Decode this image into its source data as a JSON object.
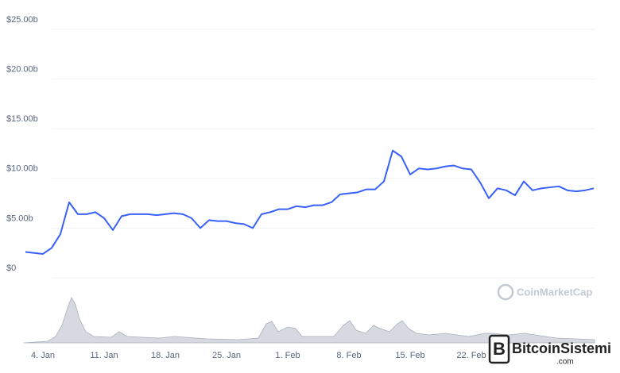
{
  "chart_data": {
    "type": "line",
    "x": [
      "2. Jan",
      "3. Jan",
      "4. Jan",
      "5. Jan",
      "6. Jan",
      "7. Jan",
      "8. Jan",
      "9. Jan",
      "10. Jan",
      "11. Jan",
      "12. Jan",
      "13. Jan",
      "14. Jan",
      "15. Jan",
      "16. Jan",
      "17. Jan",
      "18. Jan",
      "19. Jan",
      "20. Jan",
      "21. Jan",
      "22. Jan",
      "23. Jan",
      "24. Jan",
      "25. Jan",
      "26. Jan",
      "27. Jan",
      "28. Jan",
      "29. Jan",
      "30. Jan",
      "31. Jan",
      "1. Feb",
      "2. Feb",
      "3. Feb",
      "4. Feb",
      "5. Feb",
      "6. Feb",
      "7. Feb",
      "8. Feb",
      "9. Feb",
      "10. Feb",
      "11. Feb",
      "12. Feb",
      "13. Feb",
      "14. Feb",
      "15. Feb",
      "16. Feb",
      "17. Feb",
      "18. Feb",
      "19. Feb",
      "20. Feb",
      "21. Feb",
      "22. Feb",
      "23. Feb",
      "24. Feb",
      "25. Feb",
      "26. Feb",
      "27. Feb",
      "28. Feb",
      "1. Mar",
      "2. Mar",
      "3. Mar",
      "4. Mar",
      "5. Mar",
      "6. Mar",
      "7. Mar",
      "8. Mar"
    ],
    "series": [
      {
        "color": "#3861fb",
        "values": [
          2.6,
          2.5,
          2.4,
          3.0,
          4.4,
          7.6,
          6.4,
          6.4,
          6.6,
          6.0,
          4.8,
          6.2,
          6.4,
          6.4,
          6.4,
          6.3,
          6.4,
          6.5,
          6.4,
          6.0,
          5.0,
          5.8,
          5.7,
          5.7,
          5.5,
          5.4,
          5.0,
          6.4,
          6.6,
          6.9,
          6.9,
          7.2,
          7.1,
          7.3,
          7.3,
          7.6,
          8.4,
          8.5,
          8.6,
          8.9,
          8.9,
          9.7,
          12.8,
          12.2,
          10.4,
          11.0,
          10.9,
          11.0,
          11.2,
          11.3,
          11.0,
          10.9,
          9.6,
          8.0,
          9.0,
          8.8,
          8.3,
          9.7,
          8.8,
          9.0,
          9.1,
          9.2,
          8.8,
          8.7,
          8.8,
          9.0
        ]
      }
    ],
    "xticks": [
      "4. Jan",
      "11. Jan",
      "18. Jan",
      "25. Jan",
      "1. Feb",
      "8. Feb",
      "15. Feb",
      "22. Feb"
    ],
    "ylim": [
      0,
      25
    ],
    "yticks": [
      {
        "value": 0,
        "label": "$0"
      },
      {
        "value": 5,
        "label": "$5.00b"
      },
      {
        "value": 10,
        "label": "$10.00b"
      },
      {
        "value": 15,
        "label": "$15.00b"
      },
      {
        "value": 20,
        "label": "$20.00b"
      },
      {
        "value": 25,
        "label": "$25.00b"
      }
    ],
    "grid": true
  },
  "watermark": "CoinMarketCap",
  "logo": {
    "name": "BitcoinSistemi",
    "domain": ".com"
  }
}
